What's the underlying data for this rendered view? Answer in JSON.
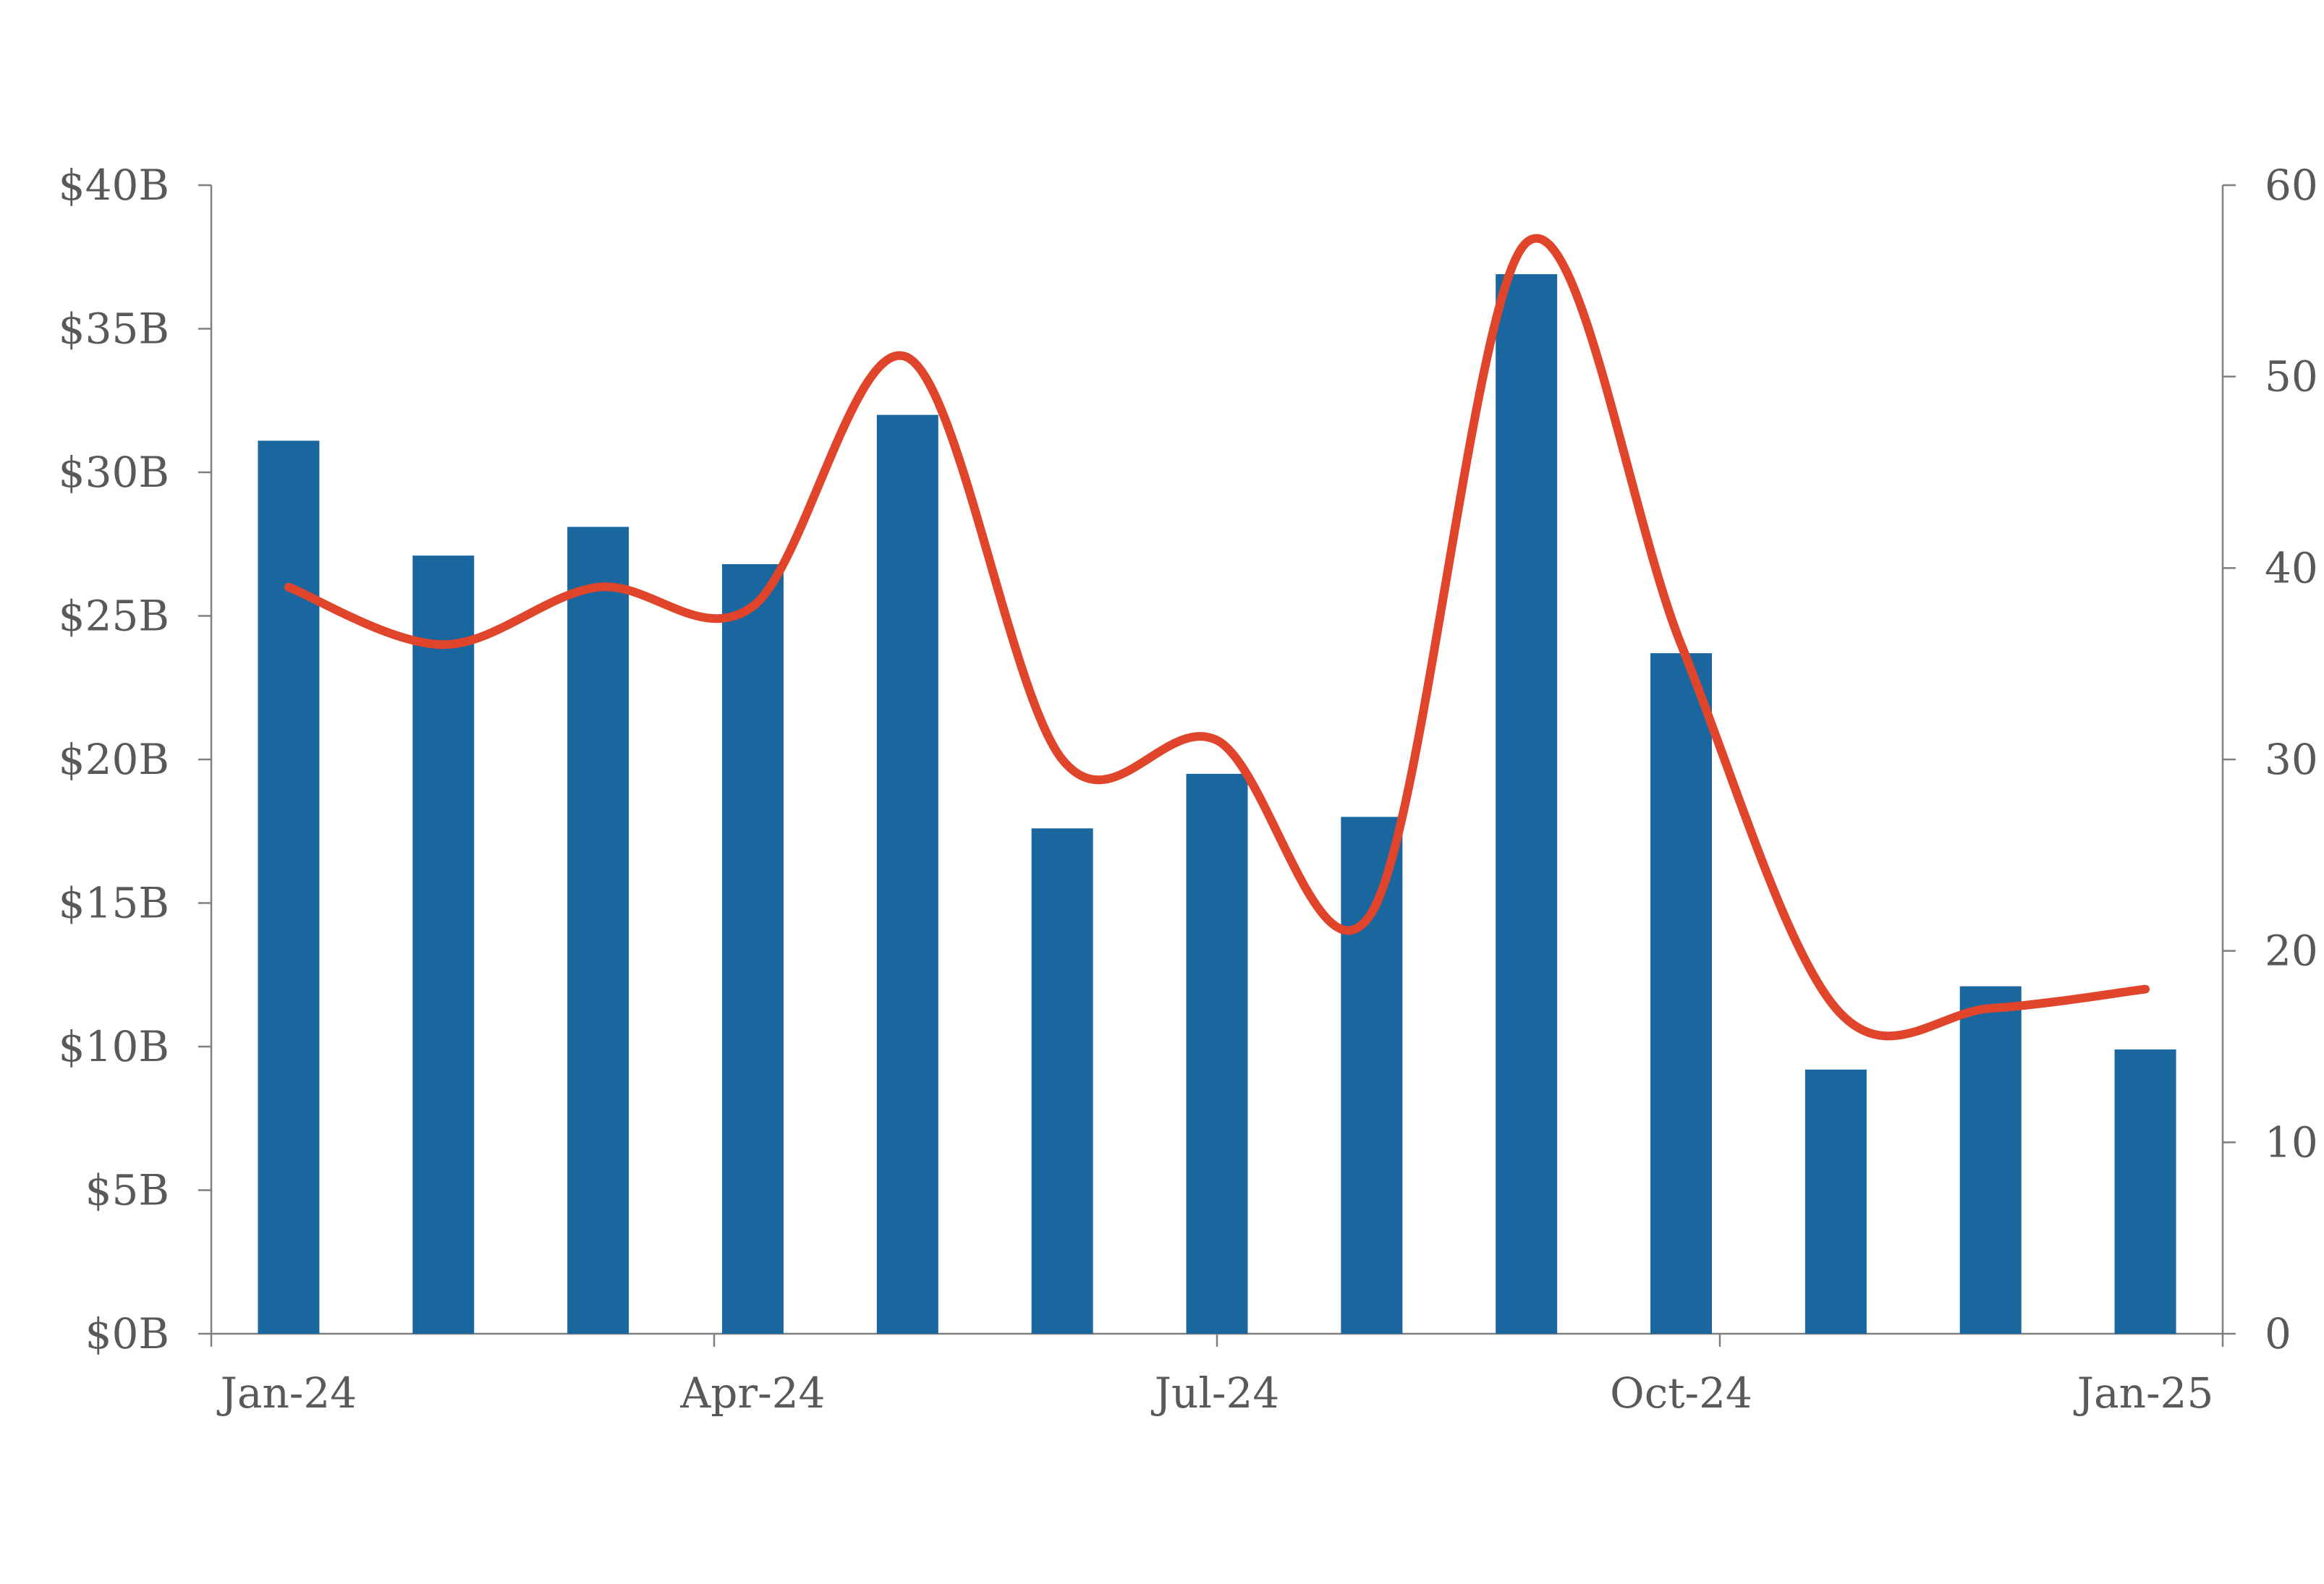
{
  "chart_data": {
    "type": "bar",
    "title": "",
    "xlabel": "",
    "ylabel": "",
    "y2label": "",
    "categories": [
      "Jan-24",
      "Feb-24",
      "Mar-24",
      "Apr-24",
      "May-24",
      "Jun-24",
      "Jul-24",
      "Aug-24",
      "Sep-24",
      "Oct-24",
      "Nov-24",
      "Dec-24",
      "Jan-25"
    ],
    "x_tick_labels": [
      "Jan-24",
      "Apr-24",
      "Jul-24",
      "Oct-24",
      "Jan-25"
    ],
    "x_tick_indices": [
      0,
      3,
      6,
      9,
      12
    ],
    "series": [
      {
        "type": "bar",
        "axis": "left",
        "color": "#1a67a0",
        "values": [
          31.1,
          27.1,
          28.1,
          26.8,
          32.0,
          17.6,
          19.5,
          18.0,
          36.9,
          23.7,
          9.2,
          12.1,
          9.9
        ]
      },
      {
        "type": "line",
        "axis": "right",
        "color": "#e0452b",
        "smooth": true,
        "values": [
          39,
          36,
          39,
          38,
          51,
          30,
          31,
          22,
          57,
          36,
          17,
          17,
          18
        ]
      }
    ],
    "y_left": {
      "min": 0,
      "max": 40,
      "step": 5,
      "tick_labels": [
        "$0B",
        "$5B",
        "$10B",
        "$15B",
        "$20B",
        "$25B",
        "$30B",
        "$35B",
        "$40B"
      ]
    },
    "y_right": {
      "min": 0,
      "max": 60,
      "step": 10,
      "tick_labels": [
        "0",
        "10",
        "20",
        "30",
        "40",
        "50",
        "60"
      ]
    },
    "grid": false,
    "legend": "none"
  }
}
